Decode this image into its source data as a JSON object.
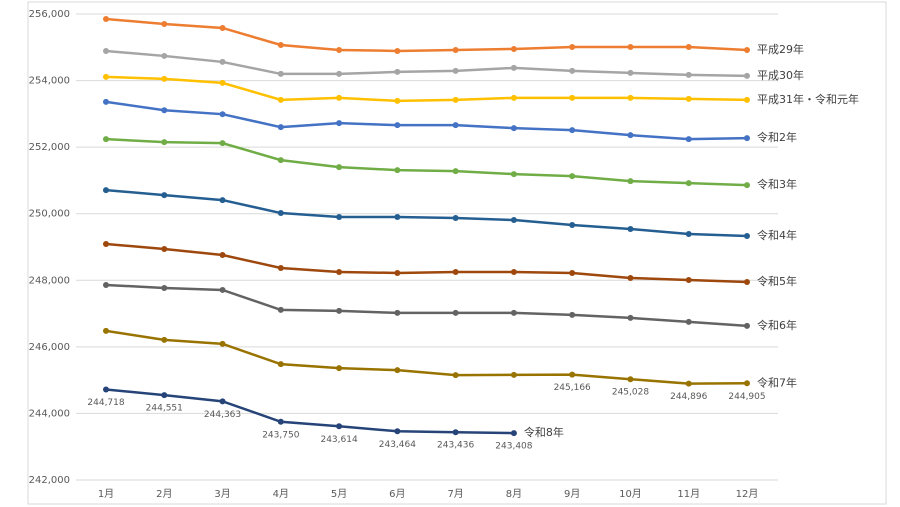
{
  "chart_data": {
    "type": "line",
    "categories": [
      "1月",
      "2月",
      "3月",
      "4月",
      "5月",
      "6月",
      "7月",
      "8月",
      "9月",
      "10月",
      "11月",
      "12月"
    ],
    "ylim": [
      242000,
      256000
    ],
    "yticks": [
      {
        "value": 242000,
        "label": "242,000"
      },
      {
        "value": 244000,
        "label": "244,000"
      },
      {
        "value": 246000,
        "label": "246,000"
      },
      {
        "value": 248000,
        "label": "248,000"
      },
      {
        "value": 250000,
        "label": "250,000"
      },
      {
        "value": 252000,
        "label": "252,000"
      },
      {
        "value": 254000,
        "label": "254,000"
      },
      {
        "value": 256000,
        "label": "256,000"
      }
    ],
    "grid": true,
    "series": [
      {
        "name": "平成29年",
        "color": "#ED7D31",
        "values": [
          255850,
          255700,
          255580,
          255070,
          254920,
          254890,
          254920,
          254950,
          255010,
          255010,
          255010,
          254920
        ]
      },
      {
        "name": "平成30年",
        "color": "#A5A5A5",
        "values": [
          254890,
          254740,
          254560,
          254200,
          254200,
          254260,
          254290,
          254380,
          254290,
          254230,
          254170,
          254140
        ]
      },
      {
        "name": "平成31年・令和元年",
        "color": "#FFC000",
        "values": [
          254110,
          254050,
          253930,
          253420,
          253480,
          253390,
          253420,
          253480,
          253480,
          253480,
          253450,
          253420
        ]
      },
      {
        "name": "令和2年",
        "color": "#4472C4",
        "values": [
          253360,
          253110,
          252990,
          252600,
          252720,
          252660,
          252660,
          252570,
          252510,
          252360,
          252240,
          252270
        ]
      },
      {
        "name": "令和3年",
        "color": "#70AD47",
        "values": [
          252240,
          252150,
          252120,
          251610,
          251400,
          251310,
          251280,
          251190,
          251130,
          250980,
          250920,
          250860
        ]
      },
      {
        "name": "令和4年",
        "color": "#255E91",
        "values": [
          250710,
          250560,
          250410,
          250020,
          249900,
          249900,
          249870,
          249810,
          249660,
          249540,
          249390,
          249330
        ]
      },
      {
        "name": "令和5年",
        "color": "#9E480E",
        "values": [
          249090,
          248940,
          248760,
          248370,
          248250,
          248220,
          248250,
          248250,
          248220,
          248070,
          248010,
          247950
        ]
      },
      {
        "name": "令和6年",
        "color": "#636363",
        "values": [
          247860,
          247770,
          247710,
          247110,
          247080,
          247020,
          247020,
          247020,
          246960,
          246870,
          246750,
          246630
        ]
      },
      {
        "name": "令和7年",
        "color": "#997300",
        "values": [
          246480,
          246210,
          246090,
          245480,
          245360,
          245300,
          245150,
          245160,
          245166,
          245028,
          244896,
          244905
        ],
        "value_labels": [
          null,
          null,
          null,
          null,
          null,
          null,
          null,
          null,
          "245,166",
          "245,028",
          "244,896",
          "244,905"
        ]
      },
      {
        "name": "令和8年",
        "color": "#264478",
        "values": [
          244718,
          244551,
          244363,
          243750,
          243614,
          243464,
          243436,
          243408,
          null,
          null,
          null,
          null
        ],
        "value_labels": [
          "244,718",
          "244,551",
          "244,363",
          "243,750",
          "243,614",
          "243,464",
          "243,436",
          "243,408",
          null,
          null,
          null,
          null
        ]
      }
    ]
  }
}
